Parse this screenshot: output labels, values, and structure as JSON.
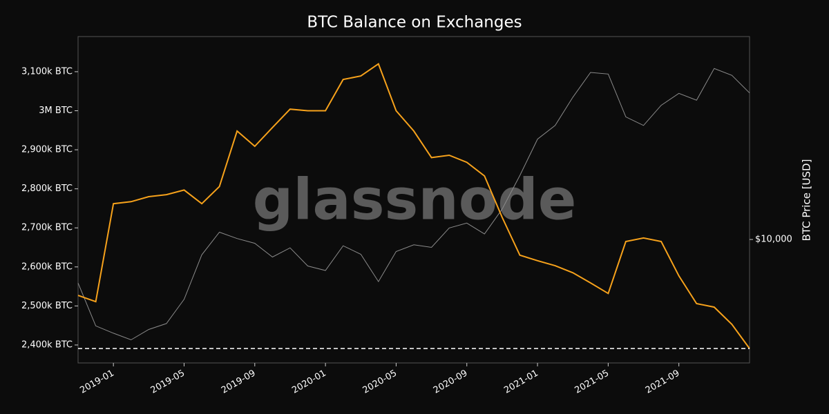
{
  "chart_data": {
    "type": "line",
    "title": "BTC Balance on Exchanges",
    "watermark": "glassnode",
    "y2label": "BTC Price [USD]",
    "x": [
      "2018-11",
      "2018-12",
      "2019-01",
      "2019-02",
      "2019-03",
      "2019-04",
      "2019-05",
      "2019-06",
      "2019-07",
      "2019-08",
      "2019-09",
      "2019-10",
      "2019-11",
      "2019-12",
      "2020-01",
      "2020-02",
      "2020-03",
      "2020-04",
      "2020-05",
      "2020-06",
      "2020-07",
      "2020-08",
      "2020-09",
      "2020-10",
      "2020-11",
      "2020-12",
      "2021-01",
      "2021-02",
      "2021-03",
      "2021-04",
      "2021-05",
      "2021-06",
      "2021-07",
      "2021-08",
      "2021-09",
      "2021-10",
      "2021-11",
      "2021-12",
      "2022-01"
    ],
    "xlim": [
      "2018-11",
      "2022-01"
    ],
    "xticks": [
      "2019-01",
      "2019-05",
      "2019-09",
      "2020-01",
      "2020-05",
      "2020-09",
      "2021-01",
      "2021-05",
      "2021-09"
    ],
    "series": [
      {
        "name": "BTC Price",
        "color": "#8c8c8c",
        "axis": "y2",
        "values": [
          6300,
          4000,
          3700,
          3450,
          3850,
          4100,
          5300,
          8500,
          10800,
          10100,
          9600,
          8300,
          9150,
          7550,
          7200,
          9350,
          8550,
          6400,
          8800,
          9450,
          9200,
          11300,
          11900,
          10600,
          13800,
          19700,
          29000,
          33500,
          45200,
          58800,
          57800,
          36700,
          33500,
          41500,
          47100,
          43800,
          61300,
          57000,
          47300
        ]
      },
      {
        "name": "BTC Balance",
        "color": "#f7a21b",
        "values": [
          2527000,
          2511000,
          2762000,
          2767000,
          2780000,
          2785000,
          2797000,
          2762000,
          2806000,
          2948000,
          2909000,
          2957000,
          3004000,
          3000000,
          3000000,
          3080000,
          3089000,
          3120000,
          3000000,
          2948000,
          2880000,
          2886000,
          2868000,
          2833000,
          2727000,
          2630000,
          2616000,
          2603000,
          2585000,
          2559000,
          2532000,
          2665000,
          2674000,
          2665000,
          2577000,
          2506000,
          2497000,
          2453000,
          2391000
        ]
      }
    ],
    "ylim": [
      2354000,
      3190000
    ],
    "yticks": [
      {
        "value": 2400000,
        "label": "2,400k BTC"
      },
      {
        "value": 2500000,
        "label": "2,500k BTC"
      },
      {
        "value": 2600000,
        "label": "2,600k BTC"
      },
      {
        "value": 2700000,
        "label": "2,700k BTC"
      },
      {
        "value": 2800000,
        "label": "2,800k BTC"
      },
      {
        "value": 2900000,
        "label": "2,900k BTC"
      },
      {
        "value": 3000000,
        "label": "3M BTC"
      },
      {
        "value": 3100000,
        "label": "3,100k BTC"
      }
    ],
    "y2lim": [
      2700,
      86000
    ],
    "y2scale": "log",
    "y2ticks": [
      {
        "value": 10000,
        "label": "$10,000"
      }
    ]
  }
}
